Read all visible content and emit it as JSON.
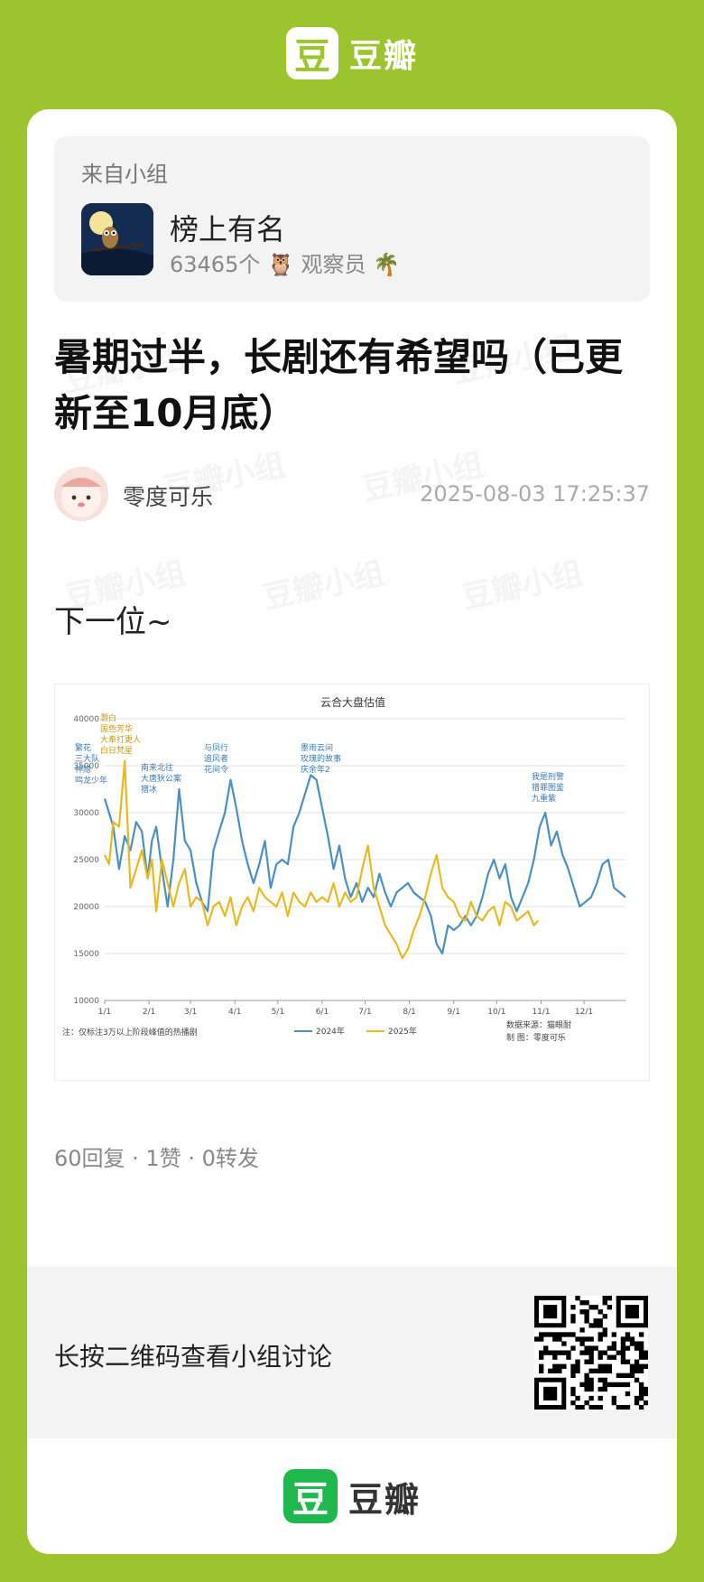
{
  "brand": {
    "logo_char": "豆",
    "name": "豆瓣",
    "green": "#9cc42d",
    "bottom_green": "#1fb84f"
  },
  "group": {
    "from_label": "来自小组",
    "name": "榜上有名",
    "member_count": "63465个",
    "member_title": "观察员"
  },
  "post": {
    "title": "暑期过半，长剧还有希望吗（已更新至10月底）",
    "author": "零度可乐",
    "timestamp": "2025-08-03 17:25:37",
    "body": "下一位~",
    "stats": "60回复 · 1赞 · 0转发"
  },
  "qr": {
    "label": "长按二维码查看小组讨论"
  },
  "watermark": "豆瓣小组",
  "chart_data": {
    "type": "line",
    "title": "云合大盘估值",
    "x_ticks": [
      "1/1",
      "2/1",
      "3/1",
      "4/1",
      "5/1",
      "6/1",
      "7/1",
      "8/1",
      "9/1",
      "10/1",
      "11/1",
      "12/1"
    ],
    "ylim": [
      10000,
      40000
    ],
    "y_ticks": [
      10000,
      15000,
      20000,
      25000,
      30000,
      35000,
      40000
    ],
    "series": [
      {
        "name": "2024年",
        "color": "#4a90c2",
        "x": [
          0,
          3,
          6,
          10,
          14,
          18,
          22,
          26,
          30,
          33,
          36,
          40,
          44,
          48,
          52,
          56,
          60,
          64,
          68,
          72,
          76,
          80,
          84,
          88,
          92,
          96,
          100,
          104,
          108,
          112,
          116,
          120,
          124,
          128,
          132,
          136,
          140,
          144,
          148,
          152,
          156,
          160,
          164,
          168,
          172,
          176,
          180,
          184,
          188,
          192,
          196,
          200,
          204,
          208,
          212,
          216,
          220,
          224,
          228,
          232,
          236,
          240,
          244,
          248,
          252,
          256,
          260,
          264,
          268,
          272,
          276,
          280,
          284,
          288,
          292,
          296,
          300,
          304,
          308,
          312,
          316,
          320,
          324,
          328,
          332,
          336,
          340,
          344,
          348,
          352,
          356,
          360,
          364
        ],
        "y": [
          31500,
          30000,
          28500,
          24000,
          27500,
          26000,
          29000,
          28000,
          23000,
          27000,
          28500,
          24000,
          20000,
          25000,
          32500,
          27000,
          26000,
          22500,
          20500,
          19500,
          26000,
          28000,
          30000,
          33500,
          30500,
          27000,
          24500,
          22500,
          24500,
          27000,
          22000,
          24500,
          25000,
          24500,
          28500,
          30000,
          32000,
          34000,
          33500,
          30500,
          27500,
          24000,
          26500,
          23000,
          21000,
          22500,
          20500,
          22000,
          21000,
          23500,
          21500,
          20000,
          21500,
          22000,
          22500,
          21500,
          21000,
          20500,
          19000,
          16000,
          15000,
          18000,
          17500,
          18000,
          19000,
          18000,
          19000,
          21000,
          23500,
          25000,
          23000,
          24500,
          21000,
          19500,
          21000,
          22500,
          25000,
          28500,
          30000,
          26500,
          28000,
          25500,
          24000,
          22000,
          20000,
          20500,
          21000,
          22500,
          24500,
          25000,
          22000,
          21500,
          21000
        ],
        "x_end": 364
      },
      {
        "name": "2025年",
        "color": "#e8b923",
        "x": [
          0,
          3,
          6,
          10,
          14,
          18,
          22,
          26,
          30,
          33,
          36,
          40,
          44,
          48,
          52,
          56,
          60,
          64,
          68,
          72,
          76,
          80,
          84,
          88,
          92,
          96,
          100,
          104,
          108,
          112,
          116,
          120,
          124,
          128,
          132,
          136,
          140,
          144,
          148,
          152,
          156,
          160,
          164,
          168,
          172,
          176,
          180,
          184,
          188,
          192,
          196,
          200,
          204,
          208,
          212,
          216,
          220,
          224,
          228,
          232,
          236,
          240,
          244,
          248,
          252,
          256,
          260,
          264,
          268,
          272,
          276,
          280,
          284,
          288,
          292,
          296,
          300,
          303
        ],
        "y": [
          25500,
          24500,
          29000,
          28500,
          35500,
          22000,
          24000,
          26000,
          23000,
          25000,
          19500,
          25000,
          22500,
          20000,
          22500,
          24000,
          20000,
          21000,
          20500,
          18000,
          20000,
          20500,
          19000,
          21000,
          18000,
          20000,
          21000,
          19500,
          22000,
          21000,
          20500,
          20000,
          21500,
          19000,
          21500,
          20500,
          20000,
          21500,
          20500,
          21000,
          20500,
          22500,
          20000,
          21500,
          20500,
          21000,
          24000,
          26500,
          22000,
          20000,
          18000,
          17000,
          16000,
          14500,
          15500,
          17500,
          19000,
          21000,
          23500,
          25500,
          22000,
          21000,
          20500,
          19000,
          18500,
          20500,
          19000,
          18500,
          19500,
          20000,
          18000,
          20500,
          20000,
          18500,
          19000,
          19500,
          18000,
          18500
        ],
        "x_end": 303
      }
    ],
    "annotations": [
      {
        "text": [
          "繁花",
          "三大队",
          "神隐",
          "鸣龙少年"
        ],
        "series": "2024年"
      },
      {
        "text": [
          "灏白",
          "国色芳华",
          "大奉打更人",
          "白日梵星"
        ],
        "series": "2025年"
      },
      {
        "text": [
          "南来北往",
          "大唐狄公案",
          "猎冰"
        ],
        "series": "2024年"
      },
      {
        "text": [
          "与凤行",
          "追风者",
          "花间令"
        ],
        "series": "2024年"
      },
      {
        "text": [
          "墨雨云间",
          "玫瑰的故事",
          "庆余年2"
        ],
        "series": "2024年"
      },
      {
        "text": [
          "我是刑警",
          "猎罪图鉴",
          "九重紫"
        ],
        "series": "2024年"
      }
    ],
    "footnote": "注：仅标注3万以上阶段峰值的热播剧",
    "source_line1": "数据来源：猫眼耐",
    "source_line2": "制  图：零度可乐",
    "grid": true,
    "legend": "bottom-center"
  }
}
